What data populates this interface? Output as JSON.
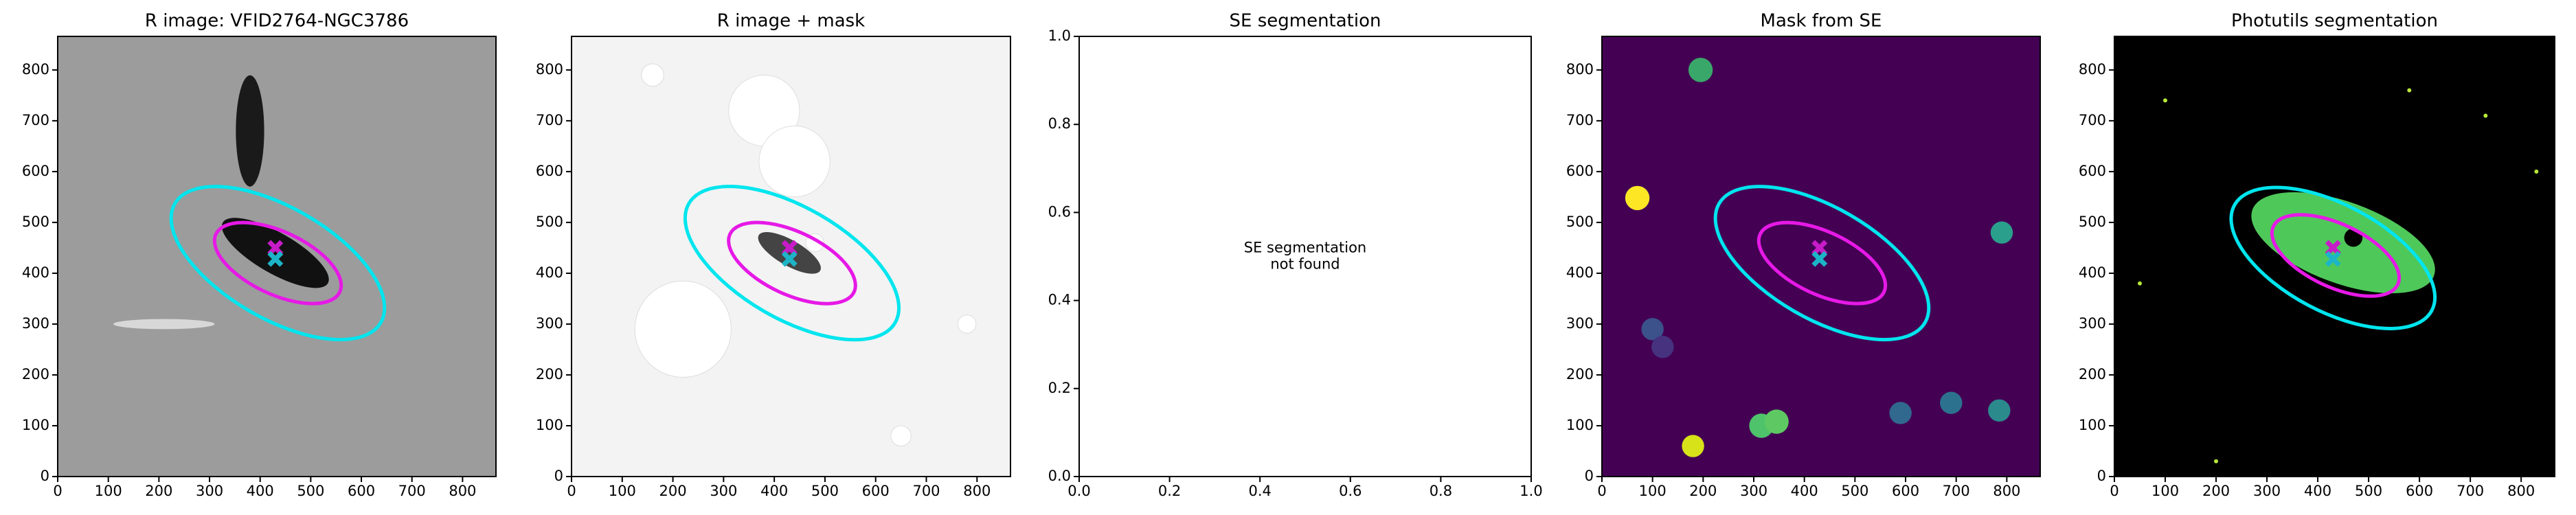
{
  "chart_data": [
    {
      "type": "image",
      "title": "R image: VFID2764-NGC3786",
      "background": "#9c9c9c",
      "xlim": [
        0,
        866
      ],
      "ylim": [
        0,
        866
      ],
      "xticks": [
        0,
        100,
        200,
        300,
        400,
        500,
        600,
        700,
        800
      ],
      "yticks": [
        0,
        100,
        200,
        300,
        400,
        500,
        600,
        700,
        800
      ],
      "ellipses": [
        {
          "center": [
            435,
            420
          ],
          "semi_axes": [
            235,
            110
          ],
          "angle": -30,
          "color": "#00e5ee"
        },
        {
          "center": [
            435,
            420
          ],
          "semi_axes": [
            135,
            62
          ],
          "angle": -25,
          "color": "#e619e6"
        }
      ],
      "markers": [
        {
          "x": 430,
          "y": 450,
          "color": "#c71cc7"
        },
        {
          "x": 430,
          "y": 428,
          "color": "#1cb5c7"
        }
      ]
    },
    {
      "type": "image",
      "title": "R image + mask",
      "background": "#f3f3f3",
      "xlim": [
        0,
        866
      ],
      "ylim": [
        0,
        866
      ],
      "xticks": [
        0,
        100,
        200,
        300,
        400,
        500,
        600,
        700,
        800
      ],
      "yticks": [
        0,
        100,
        200,
        300,
        400,
        500,
        600,
        700,
        800
      ],
      "ellipses": [
        {
          "center": [
            435,
            420
          ],
          "semi_axes": [
            235,
            110
          ],
          "angle": -30,
          "color": "#00e5ee"
        },
        {
          "center": [
            435,
            420
          ],
          "semi_axes": [
            135,
            62
          ],
          "angle": -25,
          "color": "#e619e6"
        }
      ],
      "markers": [
        {
          "x": 430,
          "y": 450,
          "color": "#c71cc7"
        },
        {
          "x": 430,
          "y": 428,
          "color": "#1cb5c7"
        }
      ]
    },
    {
      "type": "empty",
      "title": "SE segmentation",
      "background": "#ffffff",
      "xlim": [
        0,
        1
      ],
      "ylim": [
        0,
        1
      ],
      "xticks": [
        {
          "value": 0,
          "label": "0.0"
        },
        {
          "value": 0.2,
          "label": "0.2"
        },
        {
          "value": 0.4,
          "label": "0.4"
        },
        {
          "value": 0.6,
          "label": "0.6"
        },
        {
          "value": 0.8,
          "label": "0.8"
        },
        {
          "value": 1,
          "label": "1.0"
        }
      ],
      "yticks": [
        {
          "value": 0,
          "label": "0.0"
        },
        {
          "value": 0.2,
          "label": "0.2"
        },
        {
          "value": 0.4,
          "label": "0.4"
        },
        {
          "value": 0.6,
          "label": "0.6"
        },
        {
          "value": 0.8,
          "label": "0.8"
        },
        {
          "value": 1,
          "label": "1.0"
        }
      ],
      "annotation": [
        "SE segmentation",
        "not found"
      ]
    },
    {
      "type": "image",
      "title": "Mask from SE",
      "background": "#440154",
      "xlim": [
        0,
        866
      ],
      "ylim": [
        0,
        866
      ],
      "xticks": [
        0,
        100,
        200,
        300,
        400,
        500,
        600,
        700,
        800
      ],
      "yticks": [
        0,
        100,
        200,
        300,
        400,
        500,
        600,
        700,
        800
      ],
      "ellipses": [
        {
          "center": [
            435,
            420
          ],
          "semi_axes": [
            235,
            110
          ],
          "angle": -30,
          "color": "#00e5ee"
        },
        {
          "center": [
            435,
            420
          ],
          "semi_axes": [
            135,
            62
          ],
          "angle": -25,
          "color": "#e619e6"
        }
      ],
      "markers": [
        {
          "x": 430,
          "y": 450,
          "color": "#c71cc7"
        },
        {
          "x": 430,
          "y": 428,
          "color": "#1cb5c7"
        }
      ]
    },
    {
      "type": "image",
      "title": "Photutils segmentation",
      "background": "#000000",
      "xlim": [
        0,
        866
      ],
      "ylim": [
        0,
        866
      ],
      "xticks": [
        0,
        100,
        200,
        300,
        400,
        500,
        600,
        700,
        800
      ],
      "yticks": [
        0,
        100,
        200,
        300,
        400,
        500,
        600,
        700,
        800
      ],
      "ellipses": [
        {
          "center": [
            430,
            430
          ],
          "semi_axes": [
            220,
            105
          ],
          "angle": -28,
          "color": "#00e5ee"
        },
        {
          "center": [
            435,
            435
          ],
          "semi_axes": [
            135,
            62
          ],
          "angle": -25,
          "color": "#e619e6"
        }
      ],
      "markers": [
        {
          "x": 430,
          "y": 450,
          "color": "#c71cc7"
        },
        {
          "x": 430,
          "y": 428,
          "color": "#1cb5c7"
        }
      ]
    }
  ]
}
